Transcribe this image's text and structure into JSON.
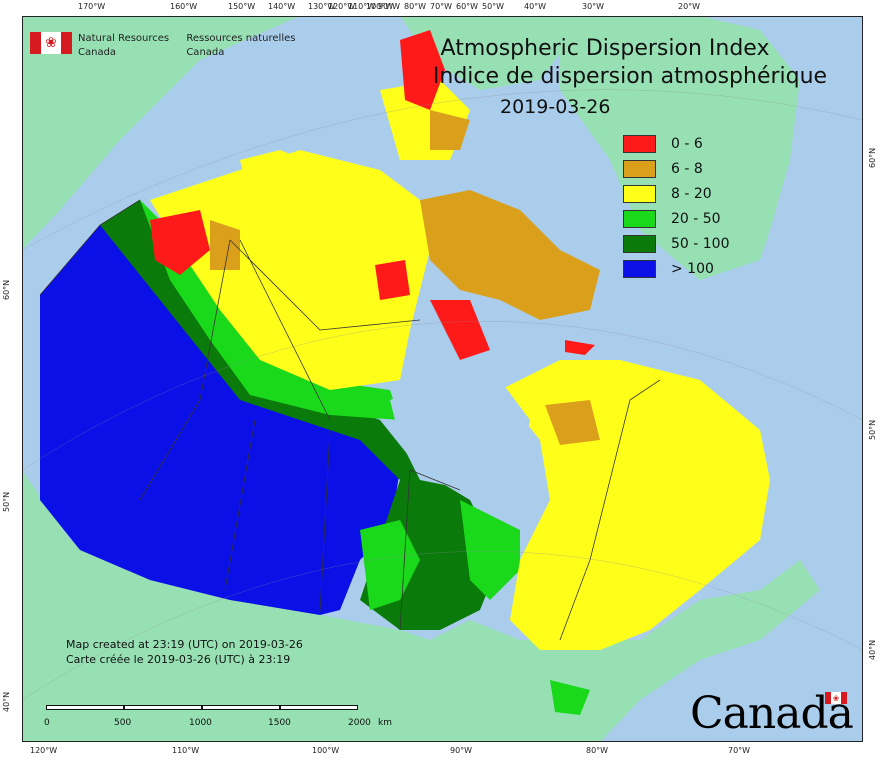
{
  "title": {
    "line1": "Atmospheric Dispersion Index",
    "line2": "Indice de dispersion atmosphérique",
    "date": "2019-03-26"
  },
  "agency": {
    "en_line1": "Natural Resources",
    "en_line2": "Canada",
    "fr_line1": "Ressources naturelles",
    "fr_line2": "Canada"
  },
  "legend": [
    {
      "label": "0 - 6",
      "color": "#ff1a1a"
    },
    {
      "label": "6 - 8",
      "color": "#daa01b"
    },
    {
      "label": "8 - 20",
      "color": "#ffff1a"
    },
    {
      "label": "20 - 50",
      "color": "#1ad81a"
    },
    {
      "label": "50 - 100",
      "color": "#0a7a0a"
    },
    {
      "label": "> 100",
      "color": "#0a10e6"
    }
  ],
  "credit": {
    "line1": "Map created at 23:19 (UTC) on 2019-03-26",
    "line2": "Carte créée le 2019-03-26 (UTC) à 23:19"
  },
  "scale": {
    "labels": [
      "0",
      "500",
      "1000",
      "1500",
      "2000"
    ],
    "unit": "km"
  },
  "wordmark": "Canada",
  "graticule": {
    "top": [
      "170°W",
      "160°W",
      "150°W",
      "140°W",
      "120°W",
      "100°W",
      "90°W",
      "80°W",
      "70°W",
      "60°W",
      "50°W",
      "40°W",
      "30°W",
      "20°W",
      "130°W",
      "110°W"
    ],
    "bottom": [
      "120°W",
      "110°W",
      "100°W",
      "90°W",
      "80°W",
      "70°W"
    ],
    "left": [
      "60°N",
      "50°N",
      "40°N"
    ],
    "right": [
      "60°N",
      "50°N",
      "40°N"
    ]
  },
  "colors": {
    "water": "#abcdec",
    "land_outside": "#97e0b4"
  }
}
